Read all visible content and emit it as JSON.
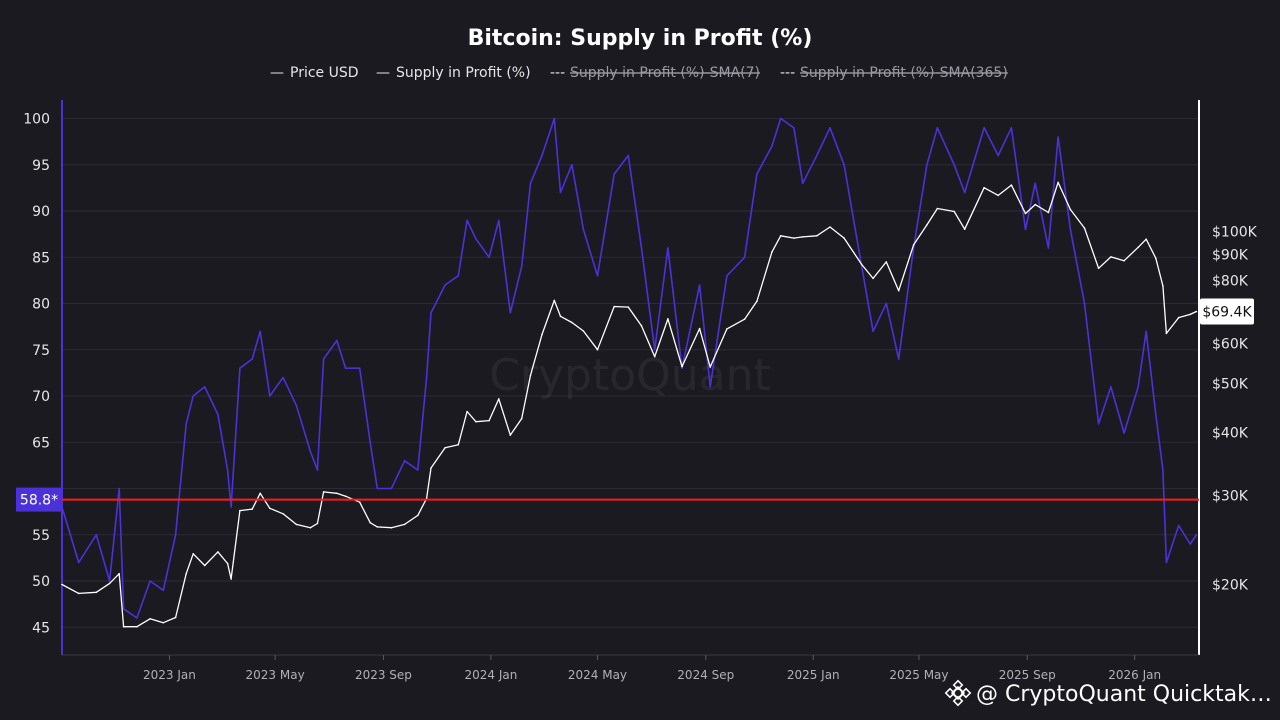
{
  "colors": {
    "background": "#1b1a21",
    "grid": "#2c2b33",
    "price": "#ffffff",
    "supply": "#4b32d8",
    "threshold": "#ff1a1a",
    "badge_left": "#4b32d8",
    "badge_right_bg": "#ffffff",
    "badge_right_text": "#111111"
  },
  "chart_data": {
    "type": "line",
    "title": "Bitcoin: Supply in Profit (%)",
    "legend": [
      {
        "label": "Price USD",
        "visible": true,
        "color": "#ffffff",
        "marker": "—"
      },
      {
        "label": "Supply in Profit (%)",
        "visible": true,
        "color": "#4b32d8",
        "marker": "—"
      },
      {
        "label": "Supply in Profit (%)-SMA(7)",
        "visible": false,
        "color": "#9a9aa2",
        "marker": "---"
      },
      {
        "label": "Supply in Profit (%)-SMA(365)",
        "visible": false,
        "color": "#9a9aa2",
        "marker": "---"
      }
    ],
    "legend_position": "top-center",
    "x_axis": {
      "type": "time",
      "range": [
        "2022-09-01",
        "2026-03-15"
      ],
      "ticks": [
        {
          "date": "2023-01-01",
          "label": "2023 Jan"
        },
        {
          "date": "2023-05-01",
          "label": "2023 May"
        },
        {
          "date": "2023-09-01",
          "label": "2023 Sep"
        },
        {
          "date": "2024-01-01",
          "label": "2024 Jan"
        },
        {
          "date": "2024-05-01",
          "label": "2024 May"
        },
        {
          "date": "2024-09-01",
          "label": "2024 Sep"
        },
        {
          "date": "2025-01-01",
          "label": "2025 Jan"
        },
        {
          "date": "2025-05-01",
          "label": "2025 May"
        },
        {
          "date": "2025-09-01",
          "label": "2025 Sep"
        },
        {
          "date": "2026-01-01",
          "label": "2026 Jan"
        }
      ]
    },
    "y_left": {
      "label": "",
      "range": [
        42,
        102
      ],
      "ticks": [
        45,
        50,
        55,
        60,
        65,
        70,
        75,
        80,
        85,
        90,
        95,
        100
      ],
      "tick_labels": [
        "45",
        "50",
        "55",
        "",
        "65",
        "70",
        "75",
        "80",
        "85",
        "90",
        "95",
        "100"
      ]
    },
    "y_right": {
      "label": "",
      "scale": "log",
      "range": [
        14500,
        182000
      ],
      "ticks": [
        {
          "value": 20000,
          "label": "$20K"
        },
        {
          "value": 30000,
          "label": "$30K"
        },
        {
          "value": 40000,
          "label": "$40K"
        },
        {
          "value": 50000,
          "label": "$50K"
        },
        {
          "value": 60000,
          "label": "$60K"
        },
        {
          "value": 80000,
          "label": "$80K"
        },
        {
          "value": 90000,
          "label": "$90K"
        },
        {
          "value": 100000,
          "label": "$100K"
        }
      ]
    },
    "grid": true,
    "threshold": {
      "value": 58.8,
      "label": "58.8*"
    },
    "current_price_badge": {
      "value": 69400,
      "label": "$69.4K"
    },
    "series": [
      {
        "name": "Supply in Profit (%)",
        "axis": "left",
        "points": [
          [
            "2022-09-01",
            58
          ],
          [
            "2022-09-20",
            52
          ],
          [
            "2022-10-10",
            55
          ],
          [
            "2022-10-25",
            50
          ],
          [
            "2022-11-05",
            60
          ],
          [
            "2022-11-10",
            47
          ],
          [
            "2022-11-25",
            46
          ],
          [
            "2022-12-10",
            50
          ],
          [
            "2022-12-25",
            49
          ],
          [
            "2023-01-08",
            55
          ],
          [
            "2023-01-20",
            67
          ],
          [
            "2023-01-28",
            70
          ],
          [
            "2023-02-10",
            71
          ],
          [
            "2023-02-25",
            68
          ],
          [
            "2023-03-08",
            62
          ],
          [
            "2023-03-12",
            58
          ],
          [
            "2023-03-22",
            73
          ],
          [
            "2023-04-05",
            74
          ],
          [
            "2023-04-14",
            77
          ],
          [
            "2023-04-25",
            70
          ],
          [
            "2023-05-10",
            72
          ],
          [
            "2023-05-25",
            69
          ],
          [
            "2023-06-10",
            64
          ],
          [
            "2023-06-18",
            62
          ],
          [
            "2023-06-25",
            74
          ],
          [
            "2023-07-10",
            76
          ],
          [
            "2023-07-20",
            73
          ],
          [
            "2023-08-05",
            73
          ],
          [
            "2023-08-17",
            65
          ],
          [
            "2023-08-25",
            60
          ],
          [
            "2023-09-10",
            60
          ],
          [
            "2023-09-25",
            63
          ],
          [
            "2023-10-10",
            62
          ],
          [
            "2023-10-20",
            72
          ],
          [
            "2023-10-25",
            79
          ],
          [
            "2023-11-10",
            82
          ],
          [
            "2023-11-25",
            83
          ],
          [
            "2023-12-05",
            89
          ],
          [
            "2023-12-15",
            87
          ],
          [
            "2023-12-30",
            85
          ],
          [
            "2024-01-10",
            89
          ],
          [
            "2024-01-23",
            79
          ],
          [
            "2024-02-05",
            84
          ],
          [
            "2024-02-15",
            93
          ],
          [
            "2024-02-28",
            96
          ],
          [
            "2024-03-13",
            100
          ],
          [
            "2024-03-20",
            92
          ],
          [
            "2024-04-02",
            95
          ],
          [
            "2024-04-15",
            88
          ],
          [
            "2024-05-01",
            83
          ],
          [
            "2024-05-20",
            94
          ],
          [
            "2024-06-05",
            96
          ],
          [
            "2024-06-20",
            86
          ],
          [
            "2024-07-05",
            75
          ],
          [
            "2024-07-20",
            86
          ],
          [
            "2024-08-05",
            73
          ],
          [
            "2024-08-25",
            82
          ],
          [
            "2024-09-06",
            71
          ],
          [
            "2024-09-25",
            83
          ],
          [
            "2024-10-15",
            85
          ],
          [
            "2024-10-29",
            94
          ],
          [
            "2024-11-15",
            97
          ],
          [
            "2024-11-25",
            100
          ],
          [
            "2024-12-10",
            99
          ],
          [
            "2024-12-20",
            93
          ],
          [
            "2025-01-05",
            96
          ],
          [
            "2025-01-20",
            99
          ],
          [
            "2025-02-05",
            95
          ],
          [
            "2025-02-25",
            84
          ],
          [
            "2025-03-10",
            77
          ],
          [
            "2025-03-25",
            80
          ],
          [
            "2025-04-08",
            74
          ],
          [
            "2025-04-25",
            86
          ],
          [
            "2025-05-10",
            95
          ],
          [
            "2025-05-22",
            99
          ],
          [
            "2025-06-10",
            95
          ],
          [
            "2025-06-22",
            92
          ],
          [
            "2025-07-14",
            99
          ],
          [
            "2025-07-30",
            96
          ],
          [
            "2025-08-14",
            99
          ],
          [
            "2025-08-30",
            88
          ],
          [
            "2025-09-10",
            93
          ],
          [
            "2025-09-25",
            86
          ],
          [
            "2025-10-06",
            98
          ],
          [
            "2025-10-20",
            88
          ],
          [
            "2025-11-05",
            80
          ],
          [
            "2025-11-21",
            67
          ],
          [
            "2025-12-05",
            71
          ],
          [
            "2025-12-20",
            66
          ],
          [
            "2026-01-05",
            71
          ],
          [
            "2026-01-14",
            77
          ],
          [
            "2026-01-25",
            68
          ],
          [
            "2026-02-02",
            62
          ],
          [
            "2026-02-06",
            52
          ],
          [
            "2026-02-20",
            56
          ],
          [
            "2026-03-05",
            54
          ],
          [
            "2026-03-12",
            55
          ]
        ]
      },
      {
        "name": "Price USD",
        "axis": "right",
        "points": [
          [
            "2022-09-01",
            20000
          ],
          [
            "2022-09-20",
            19200
          ],
          [
            "2022-10-10",
            19300
          ],
          [
            "2022-10-25",
            20100
          ],
          [
            "2022-11-05",
            21000
          ],
          [
            "2022-11-10",
            16500
          ],
          [
            "2022-11-25",
            16500
          ],
          [
            "2022-12-10",
            17100
          ],
          [
            "2022-12-25",
            16800
          ],
          [
            "2023-01-08",
            17200
          ],
          [
            "2023-01-20",
            21000
          ],
          [
            "2023-01-28",
            23000
          ],
          [
            "2023-02-10",
            21800
          ],
          [
            "2023-02-25",
            23200
          ],
          [
            "2023-03-08",
            22000
          ],
          [
            "2023-03-12",
            20500
          ],
          [
            "2023-03-22",
            28000
          ],
          [
            "2023-04-05",
            28200
          ],
          [
            "2023-04-14",
            30300
          ],
          [
            "2023-04-25",
            28300
          ],
          [
            "2023-05-10",
            27600
          ],
          [
            "2023-05-25",
            26300
          ],
          [
            "2023-06-10",
            25900
          ],
          [
            "2023-06-18",
            26400
          ],
          [
            "2023-06-25",
            30500
          ],
          [
            "2023-07-10",
            30300
          ],
          [
            "2023-07-20",
            29900
          ],
          [
            "2023-08-05",
            29100
          ],
          [
            "2023-08-17",
            26500
          ],
          [
            "2023-08-25",
            26000
          ],
          [
            "2023-09-10",
            25900
          ],
          [
            "2023-09-25",
            26300
          ],
          [
            "2023-10-10",
            27400
          ],
          [
            "2023-10-20",
            29600
          ],
          [
            "2023-10-25",
            34000
          ],
          [
            "2023-11-10",
            37300
          ],
          [
            "2023-11-25",
            37800
          ],
          [
            "2023-12-05",
            44000
          ],
          [
            "2023-12-15",
            42000
          ],
          [
            "2023-12-30",
            42200
          ],
          [
            "2024-01-10",
            46600
          ],
          [
            "2024-01-23",
            39500
          ],
          [
            "2024-02-05",
            42600
          ],
          [
            "2024-02-15",
            51900
          ],
          [
            "2024-02-28",
            62500
          ],
          [
            "2024-03-13",
            73000
          ],
          [
            "2024-03-20",
            67900
          ],
          [
            "2024-04-02",
            66000
          ],
          [
            "2024-04-15",
            63500
          ],
          [
            "2024-05-01",
            58300
          ],
          [
            "2024-05-20",
            71000
          ],
          [
            "2024-06-05",
            70800
          ],
          [
            "2024-06-20",
            65000
          ],
          [
            "2024-07-05",
            56500
          ],
          [
            "2024-07-20",
            67100
          ],
          [
            "2024-08-05",
            54000
          ],
          [
            "2024-08-25",
            64200
          ],
          [
            "2024-09-06",
            53900
          ],
          [
            "2024-09-25",
            64100
          ],
          [
            "2024-10-15",
            67000
          ],
          [
            "2024-10-29",
            72700
          ],
          [
            "2024-11-15",
            91000
          ],
          [
            "2024-11-25",
            98000
          ],
          [
            "2024-12-10",
            97000
          ],
          [
            "2024-12-20",
            97500
          ],
          [
            "2025-01-05",
            98000
          ],
          [
            "2025-01-20",
            102000
          ],
          [
            "2025-02-05",
            97000
          ],
          [
            "2025-02-25",
            86000
          ],
          [
            "2025-03-10",
            80700
          ],
          [
            "2025-03-25",
            87000
          ],
          [
            "2025-04-08",
            76300
          ],
          [
            "2025-04-25",
            94000
          ],
          [
            "2025-05-10",
            103000
          ],
          [
            "2025-05-22",
            111000
          ],
          [
            "2025-06-10",
            109500
          ],
          [
            "2025-06-22",
            101000
          ],
          [
            "2025-07-14",
            122000
          ],
          [
            "2025-07-30",
            117800
          ],
          [
            "2025-08-14",
            123500
          ],
          [
            "2025-08-30",
            108500
          ],
          [
            "2025-09-10",
            113000
          ],
          [
            "2025-09-25",
            109000
          ],
          [
            "2025-10-06",
            125000
          ],
          [
            "2025-10-20",
            110500
          ],
          [
            "2025-11-05",
            101500
          ],
          [
            "2025-11-21",
            84500
          ],
          [
            "2025-12-05",
            89000
          ],
          [
            "2025-12-20",
            87500
          ],
          [
            "2026-01-05",
            93000
          ],
          [
            "2026-01-14",
            96500
          ],
          [
            "2026-01-25",
            88500
          ],
          [
            "2026-02-02",
            78000
          ],
          [
            "2026-02-06",
            62800
          ],
          [
            "2026-02-20",
            67500
          ],
          [
            "2026-03-05",
            68500
          ],
          [
            "2026-03-12",
            69400
          ]
        ]
      }
    ]
  },
  "watermark": "CryptoQuant",
  "footer": {
    "text": "@ CryptoQuant Quicktak…",
    "logo": "binance-diamond-logo"
  }
}
